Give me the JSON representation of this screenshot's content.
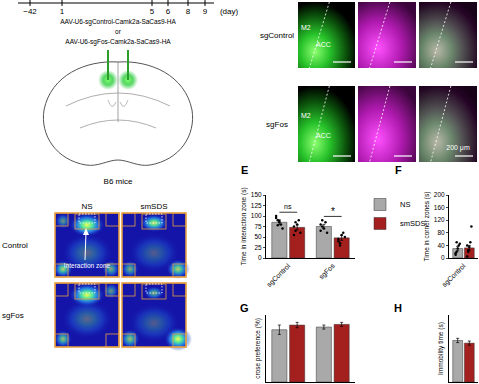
{
  "timeline": {
    "labels": [
      "−42",
      "1",
      "5",
      "6",
      "8",
      "9"
    ],
    "unit": "(day)"
  },
  "injection": {
    "lines": [
      "AAV-U6-sgControl-Camk2a-SaCas9-HA",
      "or",
      "AAV-U6-sgFos-Camk2a-SaCas9-HA"
    ],
    "mice": "B6 mice"
  },
  "heatmaps": {
    "columns": [
      "NS",
      "smSDS"
    ],
    "rows": [
      "Control",
      "sgFos"
    ],
    "annotation": "Interaction zone"
  },
  "histology": {
    "rows": [
      "sgControl",
      "sgFos"
    ],
    "regions": [
      "M2",
      "ACC"
    ],
    "scale_bar": "200 μm"
  },
  "chart_data": [
    {
      "type": "bar",
      "title": "E",
      "y_label": "Time in interaction zone (s)",
      "categories": [
        "sgControl",
        "sgFos"
      ],
      "series": [
        {
          "name": "NS",
          "color": "#a9a9a9",
          "values": [
            85,
            75
          ],
          "error": [
            6,
            5
          ],
          "points": [
            [
              95,
              90,
              85,
              80,
              70,
              100,
              78,
              88
            ],
            [
              80,
              90,
              70,
              85,
              60,
              65,
              75
            ]
          ]
        },
        {
          "name": "smSDS",
          "color": "#a3201f",
          "values": [
            73,
            48
          ],
          "error": [
            6,
            6
          ],
          "points": [
            [
              75,
              65,
              80,
              90,
              60,
              55,
              85
            ],
            [
              40,
              30,
              55,
              60,
              50,
              45,
              35
            ]
          ]
        }
      ],
      "ylim": [
        0,
        150
      ],
      "yticks": [
        0,
        25,
        50,
        75,
        100,
        125,
        150
      ],
      "annotations": [
        {
          "text": "ns",
          "category": "sgControl"
        },
        {
          "text": "*",
          "category": "sgFos"
        }
      ],
      "legend": "right",
      "grid": false
    },
    {
      "type": "bar",
      "title": "F",
      "y_label": "Time in corner zones (s)",
      "categories": [
        "sgControl"
      ],
      "series": [
        {
          "name": "NS",
          "color": "#a9a9a9",
          "values": [
            30
          ],
          "error": [
            7
          ],
          "points": [
            [
              10,
              20,
              30,
              40,
              45,
              15,
              50
            ]
          ]
        },
        {
          "name": "smSDS",
          "color": "#a3201f",
          "values": [
            32
          ],
          "error": [
            8
          ],
          "points": [
            [
              5,
              20,
              35,
              50,
              100,
              40,
              25
            ]
          ]
        }
      ],
      "ylim": [
        0,
        200
      ],
      "yticks": [
        0,
        40,
        80,
        120,
        160,
        200
      ],
      "grid": false
    },
    {
      "type": "bar",
      "title": "G",
      "y_label": "crose preference (%)",
      "categories": [
        null,
        null
      ],
      "series": [
        {
          "name": "NS",
          "color": "#a9a9a9",
          "values": [
            78,
            82
          ],
          "error": [
            7,
            3
          ]
        },
        {
          "name": "smSDS",
          "color": "#a3201f",
          "values": [
            85,
            86
          ],
          "error": [
            4,
            3
          ]
        }
      ],
      "ylim": [
        0,
        100
      ],
      "tick_labels": false,
      "grid": false
    },
    {
      "type": "bar",
      "title": "H",
      "y_label": "Immobility time (s)",
      "categories": [
        null
      ],
      "series": [
        {
          "name": "NS",
          "color": "#a9a9a9",
          "values": [
            155
          ],
          "error": [
            8
          ]
        },
        {
          "name": "smSDS",
          "color": "#a3201f",
          "values": [
            145
          ],
          "error": [
            8
          ]
        }
      ],
      "ylim": [
        0,
        250
      ],
      "tick_labels": false,
      "grid": false
    }
  ]
}
